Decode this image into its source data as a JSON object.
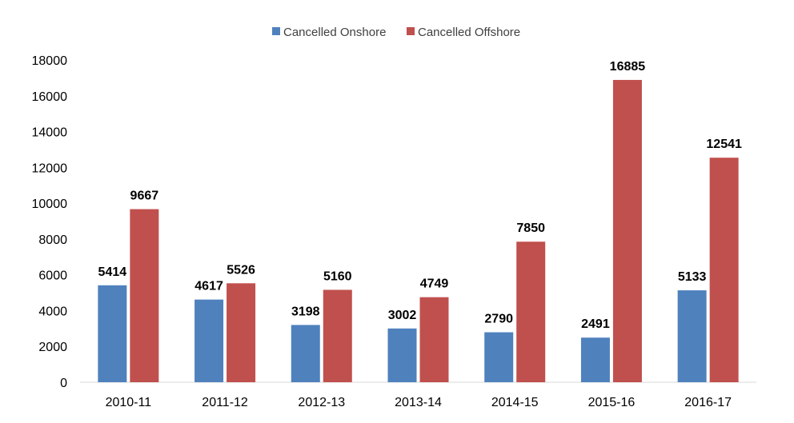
{
  "chart_data": {
    "type": "bar",
    "title": "",
    "xlabel": "",
    "ylabel": "",
    "categories": [
      "2010-11",
      "2011-12",
      "2012-13",
      "2013-14",
      "2014-15",
      "2015-16",
      "2016-17"
    ],
    "series": [
      {
        "name": "Cancelled Onshore",
        "color": "#4f81bd",
        "values": [
          5414,
          4617,
          3198,
          3002,
          2790,
          2491,
          5133
        ]
      },
      {
        "name": "Cancelled Offshore",
        "color": "#c0504d",
        "values": [
          9667,
          5526,
          5160,
          4749,
          7850,
          16885,
          12541
        ]
      }
    ],
    "ylim": [
      0,
      18000
    ],
    "yticks": [
      0,
      2000,
      4000,
      6000,
      8000,
      10000,
      12000,
      14000,
      16000,
      18000
    ],
    "grid": false,
    "legend_position": "top-center",
    "data_labels": true
  }
}
